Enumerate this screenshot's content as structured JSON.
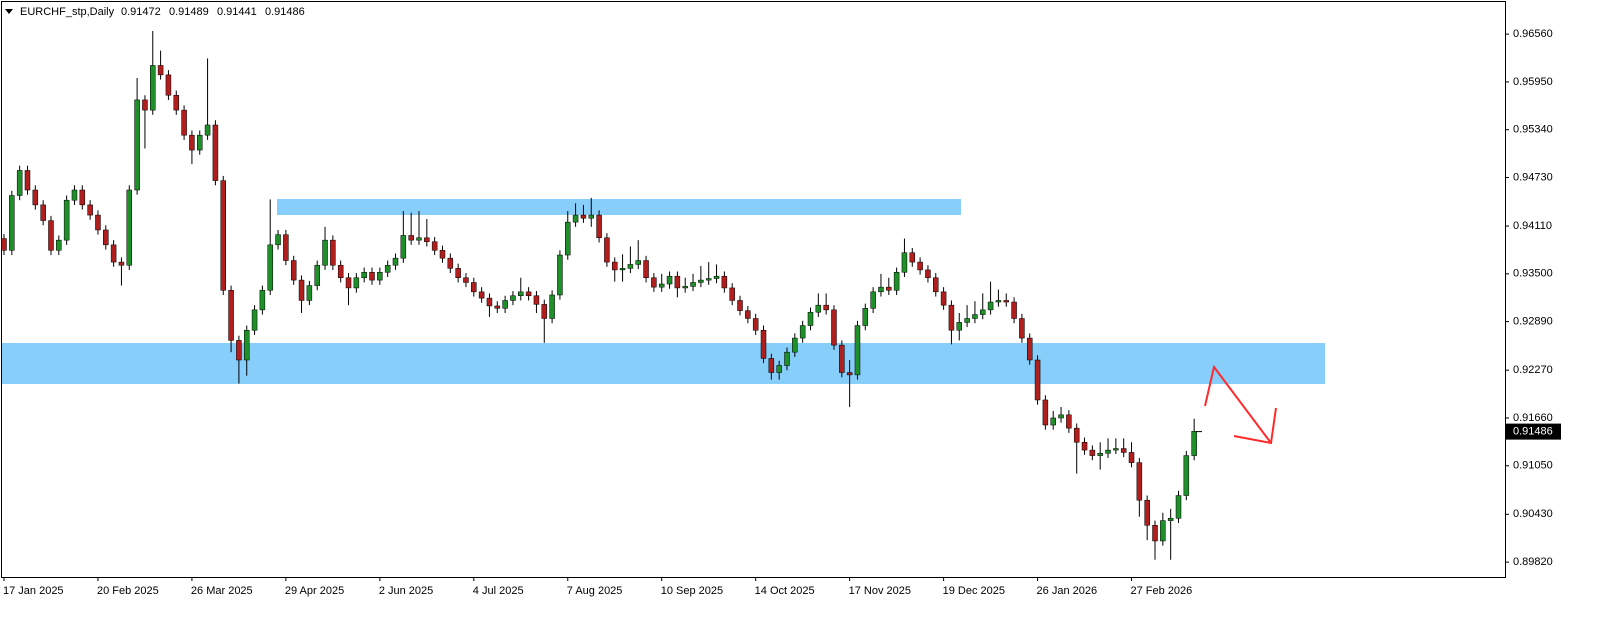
{
  "chart_data": {
    "type": "candlestick",
    "title": "EURCHF_stp,Daily",
    "header_values": [
      0.91472,
      0.91489,
      0.91441,
      0.91486
    ],
    "current_price": 0.91486,
    "up_color": "#1f8f2a",
    "down_color": "#b01e1e",
    "ylim": [
      0.8963,
      0.9697
    ],
    "yticks": [
      {
        "value": 0.9656,
        "label": "0.96560"
      },
      {
        "value": 0.9595,
        "label": "0.95950"
      },
      {
        "value": 0.9534,
        "label": "0.95340"
      },
      {
        "value": 0.9473,
        "label": "0.94730"
      },
      {
        "value": 0.9411,
        "label": "0.94110"
      },
      {
        "value": 0.935,
        "label": "0.93500"
      },
      {
        "value": 0.9289,
        "label": "0.92890"
      },
      {
        "value": 0.9227,
        "label": "0.92270"
      },
      {
        "value": 0.9166,
        "label": "0.91660"
      },
      {
        "value": 0.9105,
        "label": "0.91050"
      },
      {
        "value": 0.9043,
        "label": "0.90430"
      },
      {
        "value": 0.8982,
        "label": "0.89820"
      }
    ],
    "categories": [
      "17 Jan 2025",
      null,
      null,
      null,
      null,
      null,
      null,
      null,
      null,
      null,
      null,
      null,
      "20 Feb 2025",
      null,
      null,
      null,
      null,
      null,
      null,
      null,
      null,
      null,
      null,
      null,
      "26 Mar 2025",
      null,
      null,
      null,
      null,
      null,
      null,
      null,
      null,
      null,
      null,
      null,
      "29 Apr 2025",
      null,
      null,
      null,
      null,
      null,
      null,
      null,
      null,
      null,
      null,
      null,
      "2 Jun 2025",
      null,
      null,
      null,
      null,
      null,
      null,
      null,
      null,
      null,
      null,
      null,
      "4 Jul 2025",
      null,
      null,
      null,
      null,
      null,
      null,
      null,
      null,
      null,
      null,
      null,
      "7 Aug 2025",
      null,
      null,
      null,
      null,
      null,
      null,
      null,
      null,
      null,
      null,
      null,
      "10 Sep 2025",
      null,
      null,
      null,
      null,
      null,
      null,
      null,
      null,
      null,
      null,
      null,
      "14 Oct 2025",
      null,
      null,
      null,
      null,
      null,
      null,
      null,
      null,
      null,
      null,
      null,
      "17 Nov 2025",
      null,
      null,
      null,
      null,
      null,
      null,
      null,
      null,
      null,
      null,
      null,
      "19 Dec 2025",
      null,
      null,
      null,
      null,
      null,
      null,
      null,
      null,
      null,
      null,
      null,
      "26 Jan 2026",
      null,
      null,
      null,
      null,
      null,
      null,
      null,
      null,
      null,
      null,
      null,
      "27 Feb 2026",
      null,
      null,
      null,
      null,
      null,
      null,
      null,
      null
    ],
    "open": [
      0.9395,
      0.938,
      0.945,
      0.9482,
      0.9457,
      0.9438,
      0.9418,
      0.938,
      0.9393,
      0.9444,
      0.9457,
      0.9438,
      0.9425,
      0.9406,
      0.9387,
      0.9365,
      0.9361,
      0.9457,
      0.9572,
      0.9559,
      0.9616,
      0.9604,
      0.9578,
      0.9559,
      0.9527,
      0.9508,
      0.9527,
      0.954,
      0.9469,
      0.9329,
      0.9265,
      0.924,
      0.9278,
      0.9304,
      0.9329,
      0.9387,
      0.94,
      0.9367,
      0.9342,
      0.9316,
      0.9335,
      0.9361,
      0.9393,
      0.9361,
      0.9345,
      0.9332,
      0.9345,
      0.9352,
      0.9342,
      0.9352,
      0.9361,
      0.937,
      0.9399,
      0.9393,
      0.9396,
      0.9391,
      0.938,
      0.937,
      0.9357,
      0.9345,
      0.9339,
      0.9327,
      0.9319,
      0.9309,
      0.9306,
      0.9316,
      0.9322,
      0.9327,
      0.9322,
      0.9311,
      0.9293,
      0.9323,
      0.9374,
      0.9416,
      0.9425,
      0.9421,
      0.9425,
      0.9396,
      0.9365,
      0.9355,
      0.9357,
      0.9362,
      0.9367,
      0.9345,
      0.9333,
      0.9337,
      0.9347,
      0.9332,
      0.9334,
      0.9339,
      0.9342,
      0.9344,
      0.9347,
      0.9332,
      0.9316,
      0.9303,
      0.9293,
      0.9278,
      0.9242,
      0.9224,
      0.9233,
      0.925,
      0.9268,
      0.9284,
      0.9301,
      0.931,
      0.9304,
      0.9259,
      0.9224,
      0.9221,
      0.9284,
      0.9306,
      0.9327,
      0.9333,
      0.9329,
      0.9352,
      0.9377,
      0.9365,
      0.9355,
      0.9345,
      0.9327,
      0.931,
      0.9278,
      0.9288,
      0.9293,
      0.9298,
      0.9304,
      0.9314,
      0.9316,
      0.9314,
      0.9293,
      0.9268,
      0.924,
      0.9189,
      0.9157,
      0.9166,
      0.917,
      0.9153,
      0.9135,
      0.9125,
      0.9118,
      0.9121,
      0.9125,
      0.9127,
      0.9122,
      0.9109,
      0.9061,
      0.9029,
      0.9009,
      0.9035,
      0.9038,
      0.9067,
      0.9118
    ],
    "high": [
      0.9401,
      0.9456,
      0.9488,
      0.9488,
      0.9463,
      0.9444,
      0.9424,
      0.9399,
      0.945,
      0.9463,
      0.9463,
      0.9444,
      0.9431,
      0.9412,
      0.9393,
      0.9371,
      0.9463,
      0.96,
      0.9578,
      0.966,
      0.9635,
      0.961,
      0.9584,
      0.9565,
      0.9533,
      0.9533,
      0.9625,
      0.9546,
      0.9475,
      0.9335,
      0.9271,
      0.9284,
      0.931,
      0.9335,
      0.9445,
      0.9406,
      0.9406,
      0.9373,
      0.9348,
      0.9341,
      0.9367,
      0.941,
      0.9399,
      0.9367,
      0.9351,
      0.9351,
      0.9358,
      0.9358,
      0.9358,
      0.9367,
      0.9376,
      0.943,
      0.9428,
      0.943,
      0.942,
      0.9397,
      0.9386,
      0.9376,
      0.9363,
      0.9351,
      0.9345,
      0.9333,
      0.9325,
      0.9315,
      0.9322,
      0.9328,
      0.9345,
      0.9333,
      0.9328,
      0.9317,
      0.9329,
      0.938,
      0.943,
      0.944,
      0.9438,
      0.9447,
      0.9431,
      0.9402,
      0.9371,
      0.9375,
      0.9385,
      0.9393,
      0.9373,
      0.9351,
      0.935,
      0.9353,
      0.9353,
      0.9345,
      0.935,
      0.936,
      0.9365,
      0.9362,
      0.9353,
      0.9338,
      0.9322,
      0.9309,
      0.9299,
      0.9284,
      0.9248,
      0.9239,
      0.9256,
      0.9274,
      0.929,
      0.9307,
      0.9325,
      0.9325,
      0.931,
      0.9265,
      0.924,
      0.929,
      0.9312,
      0.9333,
      0.935,
      0.9345,
      0.9358,
      0.9395,
      0.9383,
      0.9371,
      0.9361,
      0.9351,
      0.9333,
      0.9316,
      0.93,
      0.931,
      0.9315,
      0.9325,
      0.934,
      0.933,
      0.9325,
      0.932,
      0.9299,
      0.9274,
      0.9246,
      0.9195,
      0.9175,
      0.918,
      0.9176,
      0.9159,
      0.9141,
      0.9131,
      0.9135,
      0.914,
      0.914,
      0.914,
      0.9135,
      0.9115,
      0.9067,
      0.9035,
      0.9045,
      0.905,
      0.9073,
      0.9124,
      0.9165
    ],
    "low": [
      0.9374,
      0.9374,
      0.9444,
      0.9451,
      0.9432,
      0.9412,
      0.9374,
      0.9374,
      0.9387,
      0.9438,
      0.9432,
      0.9419,
      0.94,
      0.9381,
      0.9359,
      0.9335,
      0.9355,
      0.9451,
      0.951,
      0.9553,
      0.9598,
      0.9572,
      0.9553,
      0.9521,
      0.949,
      0.9502,
      0.9521,
      0.9463,
      0.9323,
      0.925,
      0.921,
      0.922,
      0.9272,
      0.9298,
      0.9323,
      0.9381,
      0.9361,
      0.9336,
      0.93,
      0.931,
      0.9329,
      0.9355,
      0.9355,
      0.9339,
      0.931,
      0.9326,
      0.9339,
      0.9336,
      0.9336,
      0.9346,
      0.9355,
      0.9364,
      0.9387,
      0.9387,
      0.9385,
      0.9374,
      0.9364,
      0.9351,
      0.9339,
      0.9333,
      0.9321,
      0.9313,
      0.9295,
      0.93,
      0.93,
      0.931,
      0.9316,
      0.9316,
      0.93,
      0.9262,
      0.9287,
      0.9317,
      0.9368,
      0.941,
      0.9415,
      0.941,
      0.939,
      0.9359,
      0.934,
      0.934,
      0.9351,
      0.9356,
      0.9339,
      0.9327,
      0.9327,
      0.9331,
      0.932,
      0.9326,
      0.9328,
      0.9333,
      0.9336,
      0.9338,
      0.9326,
      0.931,
      0.9297,
      0.9287,
      0.9272,
      0.9236,
      0.9215,
      0.9215,
      0.9227,
      0.9244,
      0.9262,
      0.9278,
      0.9295,
      0.9298,
      0.9253,
      0.9218,
      0.918,
      0.9215,
      0.9278,
      0.93,
      0.9321,
      0.9323,
      0.9323,
      0.9346,
      0.9359,
      0.9349,
      0.9339,
      0.9321,
      0.9304,
      0.926,
      0.9265,
      0.9282,
      0.9287,
      0.9292,
      0.9298,
      0.9308,
      0.9308,
      0.9287,
      0.9262,
      0.9234,
      0.9183,
      0.9151,
      0.9151,
      0.916,
      0.9147,
      0.9095,
      0.9119,
      0.9112,
      0.91,
      0.9115,
      0.912,
      0.9116,
      0.9103,
      0.904,
      0.901,
      0.8985,
      0.9003,
      0.8985,
      0.9032,
      0.9061,
      0.9112
    ],
    "close": [
      0.938,
      0.945,
      0.9482,
      0.9457,
      0.9438,
      0.9418,
      0.938,
      0.9393,
      0.9444,
      0.9457,
      0.9438,
      0.9425,
      0.9406,
      0.9387,
      0.9365,
      0.9361,
      0.9457,
      0.9572,
      0.9559,
      0.9616,
      0.9604,
      0.9578,
      0.9559,
      0.9527,
      0.9508,
      0.9527,
      0.954,
      0.9469,
      0.9329,
      0.9265,
      0.924,
      0.9278,
      0.9304,
      0.9329,
      0.9387,
      0.94,
      0.9367,
      0.9342,
      0.9316,
      0.9335,
      0.9361,
      0.9393,
      0.9361,
      0.9345,
      0.9332,
      0.9345,
      0.9352,
      0.9342,
      0.9352,
      0.9361,
      0.937,
      0.9399,
      0.9393,
      0.9396,
      0.9391,
      0.938,
      0.937,
      0.9357,
      0.9345,
      0.9339,
      0.9327,
      0.9319,
      0.9309,
      0.9306,
      0.9316,
      0.9322,
      0.9327,
      0.9322,
      0.9311,
      0.9293,
      0.9323,
      0.9374,
      0.9416,
      0.9425,
      0.9421,
      0.9425,
      0.9396,
      0.9365,
      0.9355,
      0.9357,
      0.9362,
      0.9367,
      0.9345,
      0.9333,
      0.9337,
      0.9347,
      0.9332,
      0.9334,
      0.9339,
      0.9342,
      0.9344,
      0.9347,
      0.9332,
      0.9316,
      0.9303,
      0.9293,
      0.9278,
      0.9242,
      0.9224,
      0.9233,
      0.925,
      0.9268,
      0.9284,
      0.9301,
      0.931,
      0.9304,
      0.9259,
      0.9224,
      0.9221,
      0.9284,
      0.9306,
      0.9327,
      0.9333,
      0.9329,
      0.9352,
      0.9377,
      0.9365,
      0.9355,
      0.9345,
      0.9327,
      0.931,
      0.9278,
      0.9288,
      0.9293,
      0.9298,
      0.9304,
      0.9314,
      0.9316,
      0.9314,
      0.9293,
      0.9268,
      0.924,
      0.9189,
      0.9157,
      0.9166,
      0.917,
      0.9153,
      0.9135,
      0.9125,
      0.9118,
      0.9121,
      0.9125,
      0.9127,
      0.9122,
      0.9109,
      0.9061,
      0.9029,
      0.9009,
      0.9035,
      0.9038,
      0.9067,
      0.9118,
      0.9149
    ]
  }
}
